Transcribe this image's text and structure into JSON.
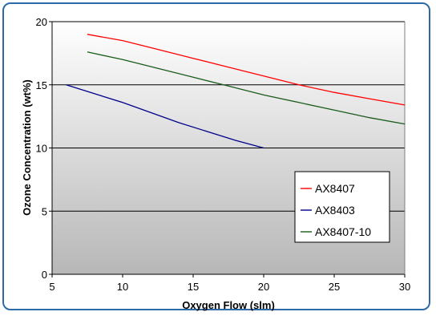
{
  "chart_data": {
    "type": "line",
    "title": "",
    "xlabel": "Oxygen Flow (slm)",
    "ylabel": "Ozone Concentration (wt%)",
    "xlim": [
      5,
      30
    ],
    "ylim": [
      0,
      20
    ],
    "x_ticks": [
      5,
      10,
      15,
      20,
      25,
      30
    ],
    "y_ticks": [
      0,
      5,
      10,
      15,
      20
    ],
    "grid": "horizontal",
    "legend_position": "right",
    "series": [
      {
        "name": "AX8407",
        "color": "#ff0000",
        "x": [
          7.5,
          10,
          12.5,
          15,
          17.5,
          20,
          22.5,
          25,
          27.5,
          30
        ],
        "y": [
          19.0,
          18.5,
          17.8,
          17.1,
          16.4,
          15.7,
          15.0,
          14.4,
          13.9,
          13.4
        ]
      },
      {
        "name": "AX8403",
        "color": "#00008b",
        "x": [
          6,
          8,
          10,
          12,
          14,
          16,
          18,
          20
        ],
        "y": [
          15.0,
          14.3,
          13.6,
          12.8,
          12.0,
          11.3,
          10.6,
          10.0
        ]
      },
      {
        "name": "AX8407-10",
        "color": "#1a5c1a",
        "x": [
          7.5,
          10,
          12.5,
          15,
          17.5,
          20,
          22.5,
          25,
          27.5,
          30
        ],
        "y": [
          17.6,
          17.0,
          16.3,
          15.6,
          14.9,
          14.2,
          13.6,
          13.0,
          12.4,
          11.9
        ]
      }
    ]
  }
}
